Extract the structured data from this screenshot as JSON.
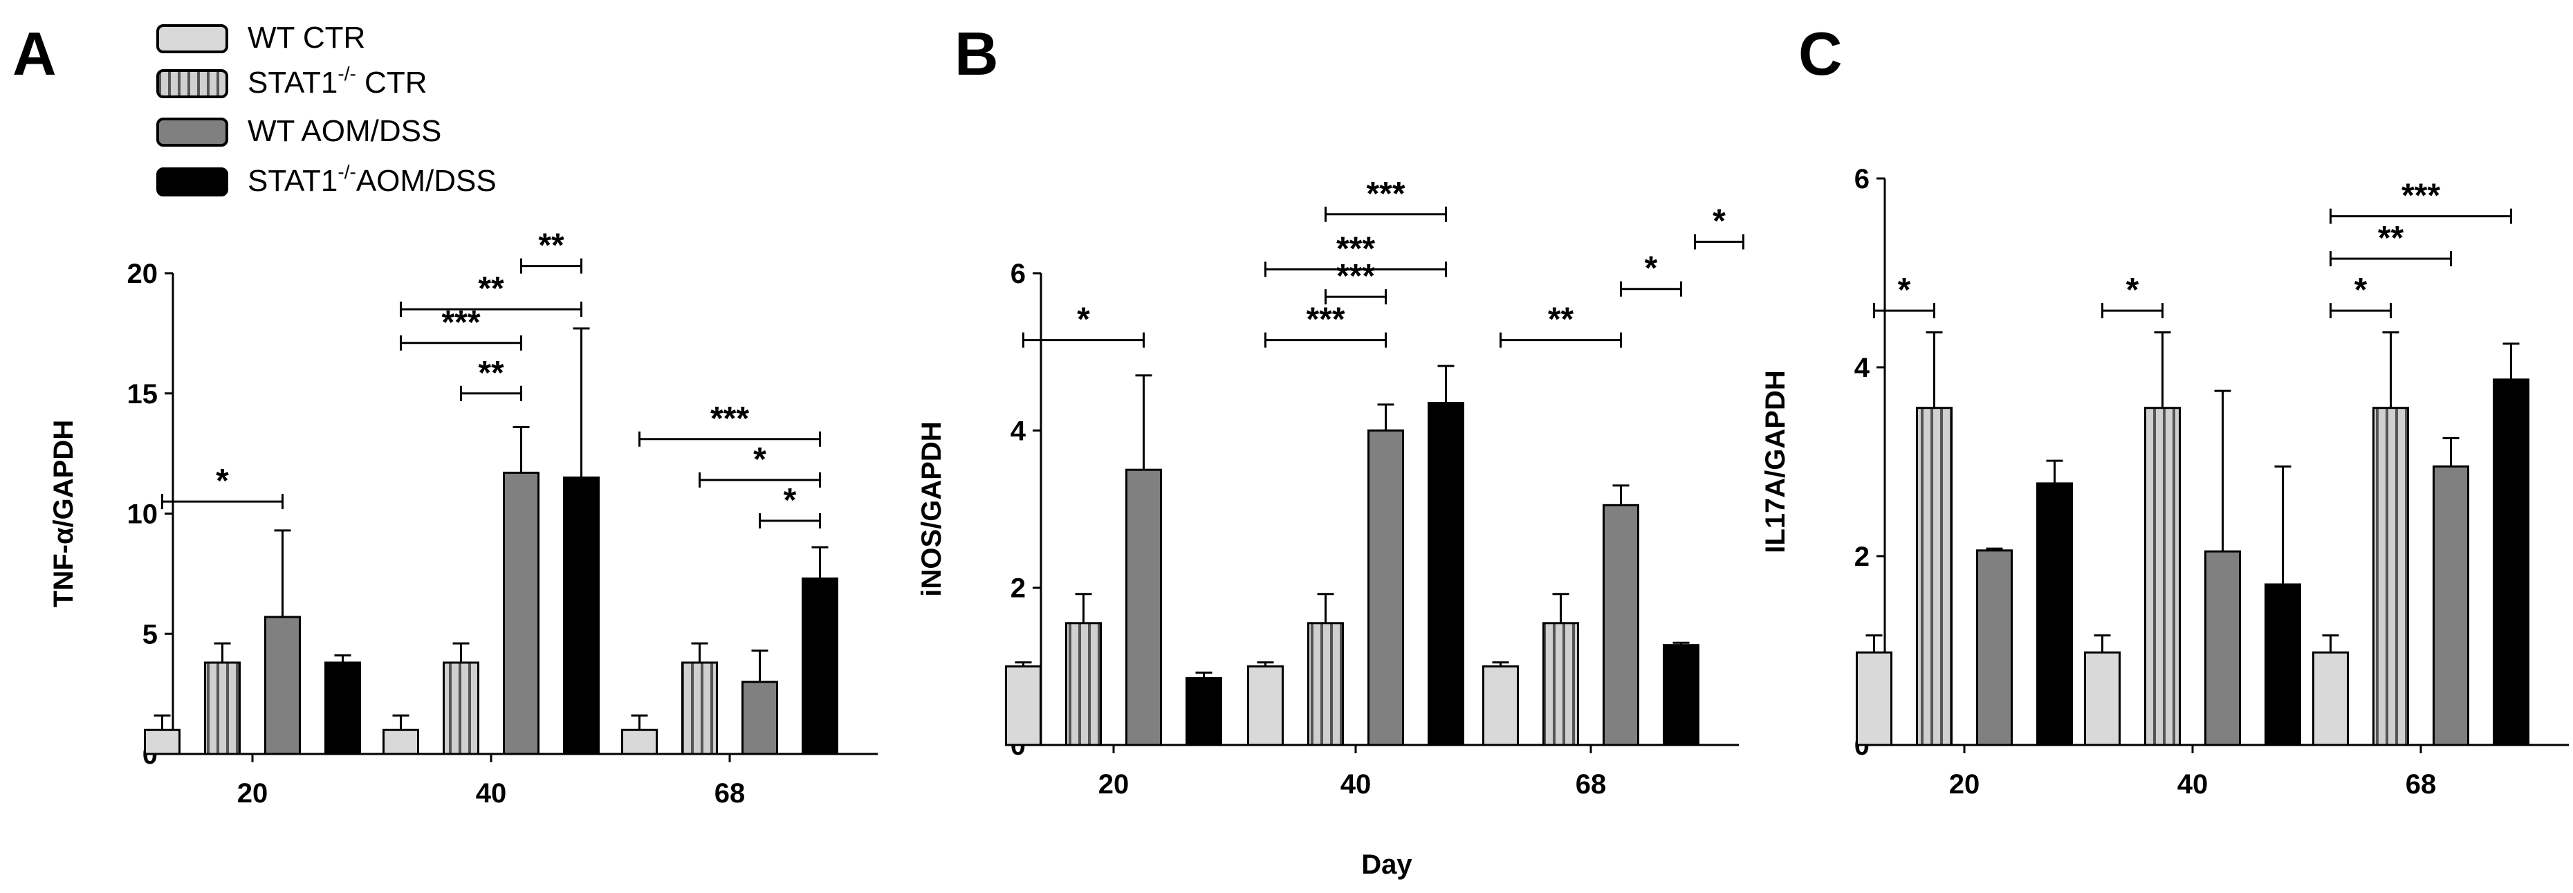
{
  "figure": {
    "shared_xlabel": "Day"
  },
  "legend": {
    "placement": "top-left",
    "items": [
      {
        "key": "wt_ctr",
        "label": "WT CTR",
        "sup": ""
      },
      {
        "key": "stat1_ctr",
        "label": "STAT1",
        "sup": "-/-",
        "suffix": " CTR"
      },
      {
        "key": "wt_aom",
        "label": "WT AOM/DSS",
        "sup": ""
      },
      {
        "key": "stat1_aom",
        "label": "STAT1",
        "sup": "-/-",
        "suffix": "AOM/DSS"
      }
    ]
  },
  "series_styles": [
    {
      "name": "WT CTR",
      "fill": "#d9d9d9",
      "pattern": "none"
    },
    {
      "name": "STAT1-/- CTR",
      "fill": "#d0d0d0",
      "pattern": "vertical-stripes"
    },
    {
      "name": "WT AOM/DSS",
      "fill": "#808080",
      "pattern": "none"
    },
    {
      "name": "STAT1-/-AOM/DSS",
      "fill": "#000000",
      "pattern": "none"
    }
  ],
  "chart_data": [
    {
      "panel": "A",
      "type": "bar",
      "ylabel": "TNF-α/GAPDH",
      "xlabel": "",
      "ylim": [
        0,
        20
      ],
      "yticks": [
        0,
        5,
        10,
        15,
        20
      ],
      "categories": [
        "20",
        "40",
        "68"
      ],
      "series": [
        {
          "name": "WT CTR",
          "values": [
            1.0,
            1.0,
            1.0
          ],
          "errors": [
            0.6,
            0.6,
            0.6
          ]
        },
        {
          "name": "STAT1-/- CTR",
          "values": [
            3.8,
            3.8,
            3.8
          ],
          "errors": [
            0.8,
            0.8,
            0.8
          ]
        },
        {
          "name": "WT AOM/DSS",
          "values": [
            5.7,
            11.7,
            3.0
          ],
          "errors": [
            3.6,
            1.9,
            1.3
          ]
        },
        {
          "name": "STAT1-/-AOM/DSS",
          "values": [
            3.8,
            11.5,
            7.3
          ],
          "errors": [
            0.3,
            6.2,
            1.3
          ]
        }
      ],
      "significance": [
        {
          "group": 0,
          "from": 0,
          "to": 2,
          "y": 10.5,
          "label": "*"
        },
        {
          "group": 1,
          "from": 2,
          "to": 3,
          "y": 20.3,
          "label": "**"
        },
        {
          "group": 1,
          "from": 0,
          "to": 3,
          "y": 18.5,
          "label": "**"
        },
        {
          "group": 1,
          "from": 0,
          "to": 2,
          "y": 17.1,
          "label": "***"
        },
        {
          "group": 1,
          "from": 1,
          "to": 2,
          "y": 15.0,
          "label": "**"
        },
        {
          "group": 2,
          "from": 0,
          "to": 3,
          "y": 13.1,
          "label": "***"
        },
        {
          "group": 2,
          "from": 1,
          "to": 3,
          "y": 11.4,
          "label": "*"
        },
        {
          "group": 2,
          "from": 2,
          "to": 3,
          "y": 9.7,
          "label": "*"
        }
      ]
    },
    {
      "panel": "B",
      "type": "bar",
      "ylabel": "iNOS/GAPDH",
      "xlabel": "Day",
      "ylim": [
        0,
        6
      ],
      "yticks": [
        0,
        2,
        4,
        6
      ],
      "categories": [
        "20",
        "40",
        "68"
      ],
      "series": [
        {
          "name": "WT CTR",
          "values": [
            1.0,
            1.0,
            1.0
          ],
          "errors": [
            0.05,
            0.05,
            0.05
          ]
        },
        {
          "name": "STAT1-/- CTR",
          "values": [
            1.55,
            1.55,
            1.55
          ],
          "errors": [
            0.37,
            0.37,
            0.37
          ]
        },
        {
          "name": "WT AOM/DSS",
          "values": [
            3.5,
            4.0,
            3.05
          ],
          "errors": [
            1.2,
            0.33,
            0.25
          ]
        },
        {
          "name": "STAT1-/-AOM/DSS",
          "values": [
            0.85,
            4.35,
            1.27
          ],
          "errors": [
            0.07,
            0.47,
            0.03
          ]
        }
      ],
      "significance": [
        {
          "group": 0,
          "from": 0,
          "to": 2,
          "y": 5.15,
          "label": "*"
        },
        {
          "group": 1,
          "from": 1,
          "to": 3,
          "y": 6.75,
          "label": "***"
        },
        {
          "group": 1,
          "from": 0,
          "to": 3,
          "y": 6.05,
          "label": "***"
        },
        {
          "group": 1,
          "from": 1,
          "to": 2,
          "y": 5.7,
          "label": "***"
        },
        {
          "group": 1,
          "from": 0,
          "to": 2,
          "y": 5.15,
          "label": "***"
        },
        {
          "group": 2,
          "from": 3,
          "to": 3,
          "y": 6.4,
          "label": "*",
          "offset_right": true
        },
        {
          "group": 2,
          "from": 2,
          "to": 3,
          "y": 5.8,
          "label": "*"
        },
        {
          "group": 2,
          "from": 0,
          "to": 2,
          "y": 5.15,
          "label": "**"
        }
      ]
    },
    {
      "panel": "C",
      "type": "bar",
      "ylabel": "IL17A/GAPDH",
      "xlabel": "",
      "ylim": [
        0,
        6
      ],
      "yticks": [
        0,
        2,
        4,
        6
      ],
      "categories": [
        "20",
        "40",
        "68"
      ],
      "series": [
        {
          "name": "WT CTR",
          "values": [
            0.98,
            0.98,
            0.98
          ],
          "errors": [
            0.18,
            0.18,
            0.18
          ]
        },
        {
          "name": "STAT1-/- CTR",
          "values": [
            3.57,
            3.57,
            3.57
          ],
          "errors": [
            0.8,
            0.8,
            0.8
          ]
        },
        {
          "name": "WT AOM/DSS",
          "values": [
            2.06,
            2.05,
            2.95
          ],
          "errors": [
            0.02,
            1.7,
            0.3
          ]
        },
        {
          "name": "STAT1-/-AOM/DSS",
          "values": [
            2.77,
            1.7,
            3.87
          ],
          "errors": [
            0.24,
            1.25,
            0.38
          ]
        }
      ],
      "significance": [
        {
          "group": 0,
          "from": 0,
          "to": 1,
          "y": 4.6,
          "label": "*"
        },
        {
          "group": 1,
          "from": 0,
          "to": 1,
          "y": 4.6,
          "label": "*"
        },
        {
          "group": 2,
          "from": 0,
          "to": 3,
          "y": 5.6,
          "label": "***"
        },
        {
          "group": 2,
          "from": 0,
          "to": 2,
          "y": 5.15,
          "label": "**"
        },
        {
          "group": 2,
          "from": 0,
          "to": 1,
          "y": 4.6,
          "label": "*"
        }
      ]
    }
  ]
}
